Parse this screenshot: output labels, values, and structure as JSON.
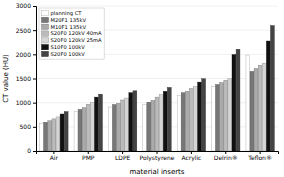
{
  "chart_data": {
    "type": "bar",
    "categories": [
      "Air",
      "PMP",
      "LDPE",
      "Polystyrene",
      "Acrylic",
      "Delrin®",
      "Teflon®"
    ],
    "series": [
      {
        "name": "planning CT",
        "color": "white",
        "values": [
          575,
          825,
          910,
          960,
          1155,
          1340,
          1985
        ]
      },
      {
        "name": "M20F1 135kV",
        "color": "#777777",
        "values": [
          595,
          860,
          960,
          1010,
          1205,
          1375,
          1645
        ]
      },
      {
        "name": "M10F1 135kV",
        "color": "#aaaaaa",
        "values": [
          625,
          895,
          985,
          1045,
          1235,
          1415,
          1705
        ]
      },
      {
        "name": "S20F0 120kV 40mA",
        "color": "#bbbbbb",
        "values": [
          665,
          965,
          1055,
          1115,
          1295,
          1465,
          1775
        ]
      },
      {
        "name": "S20F0 120kV 25mA",
        "color": "#d5d5d5",
        "values": [
          705,
          1005,
          1095,
          1165,
          1335,
          1495,
          1815
        ]
      },
      {
        "name": "S10F0 100kV",
        "color": "#111111",
        "values": [
          765,
          1115,
          1205,
          1235,
          1425,
          1995,
          2275
        ]
      },
      {
        "name": "S20F0 100kV",
        "color": "#444444",
        "values": [
          815,
          1175,
          1245,
          1315,
          1495,
          2105,
          2595
        ]
      }
    ],
    "ylim": [
      0,
      3000
    ],
    "yticks": [
      0,
      500,
      1000,
      1500,
      2000,
      2500,
      3000
    ],
    "ylabel": "CT value (HU)",
    "xlabel": "material inserts",
    "grid": true,
    "legend": "upper left"
  }
}
